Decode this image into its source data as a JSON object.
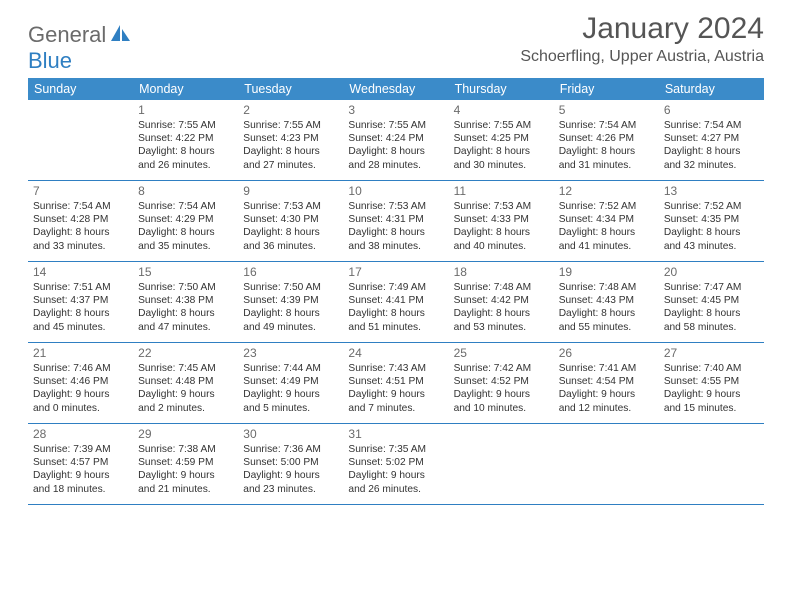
{
  "brand": {
    "text1": "General",
    "text2": "Blue",
    "iconColor": "#2f7fc2"
  },
  "title": "January 2024",
  "location": "Schoerfling, Upper Austria, Austria",
  "colors": {
    "headerBg": "#3b8bc9",
    "headerText": "#ffffff",
    "ruleColor": "#2f7fc2",
    "bodyText": "#333333",
    "mutedText": "#6b6b6b",
    "brandBlue": "#2f7fc2"
  },
  "dayNames": [
    "Sunday",
    "Monday",
    "Tuesday",
    "Wednesday",
    "Thursday",
    "Friday",
    "Saturday"
  ],
  "weeks": [
    [
      null,
      {
        "n": "1",
        "sr": "7:55 AM",
        "ss": "4:22 PM",
        "dl": "8 hours and 26 minutes."
      },
      {
        "n": "2",
        "sr": "7:55 AM",
        "ss": "4:23 PM",
        "dl": "8 hours and 27 minutes."
      },
      {
        "n": "3",
        "sr": "7:55 AM",
        "ss": "4:24 PM",
        "dl": "8 hours and 28 minutes."
      },
      {
        "n": "4",
        "sr": "7:55 AM",
        "ss": "4:25 PM",
        "dl": "8 hours and 30 minutes."
      },
      {
        "n": "5",
        "sr": "7:54 AM",
        "ss": "4:26 PM",
        "dl": "8 hours and 31 minutes."
      },
      {
        "n": "6",
        "sr": "7:54 AM",
        "ss": "4:27 PM",
        "dl": "8 hours and 32 minutes."
      }
    ],
    [
      {
        "n": "7",
        "sr": "7:54 AM",
        "ss": "4:28 PM",
        "dl": "8 hours and 33 minutes."
      },
      {
        "n": "8",
        "sr": "7:54 AM",
        "ss": "4:29 PM",
        "dl": "8 hours and 35 minutes."
      },
      {
        "n": "9",
        "sr": "7:53 AM",
        "ss": "4:30 PM",
        "dl": "8 hours and 36 minutes."
      },
      {
        "n": "10",
        "sr": "7:53 AM",
        "ss": "4:31 PM",
        "dl": "8 hours and 38 minutes."
      },
      {
        "n": "11",
        "sr": "7:53 AM",
        "ss": "4:33 PM",
        "dl": "8 hours and 40 minutes."
      },
      {
        "n": "12",
        "sr": "7:52 AM",
        "ss": "4:34 PM",
        "dl": "8 hours and 41 minutes."
      },
      {
        "n": "13",
        "sr": "7:52 AM",
        "ss": "4:35 PM",
        "dl": "8 hours and 43 minutes."
      }
    ],
    [
      {
        "n": "14",
        "sr": "7:51 AM",
        "ss": "4:37 PM",
        "dl": "8 hours and 45 minutes."
      },
      {
        "n": "15",
        "sr": "7:50 AM",
        "ss": "4:38 PM",
        "dl": "8 hours and 47 minutes."
      },
      {
        "n": "16",
        "sr": "7:50 AM",
        "ss": "4:39 PM",
        "dl": "8 hours and 49 minutes."
      },
      {
        "n": "17",
        "sr": "7:49 AM",
        "ss": "4:41 PM",
        "dl": "8 hours and 51 minutes."
      },
      {
        "n": "18",
        "sr": "7:48 AM",
        "ss": "4:42 PM",
        "dl": "8 hours and 53 minutes."
      },
      {
        "n": "19",
        "sr": "7:48 AM",
        "ss": "4:43 PM",
        "dl": "8 hours and 55 minutes."
      },
      {
        "n": "20",
        "sr": "7:47 AM",
        "ss": "4:45 PM",
        "dl": "8 hours and 58 minutes."
      }
    ],
    [
      {
        "n": "21",
        "sr": "7:46 AM",
        "ss": "4:46 PM",
        "dl": "9 hours and 0 minutes."
      },
      {
        "n": "22",
        "sr": "7:45 AM",
        "ss": "4:48 PM",
        "dl": "9 hours and 2 minutes."
      },
      {
        "n": "23",
        "sr": "7:44 AM",
        "ss": "4:49 PM",
        "dl": "9 hours and 5 minutes."
      },
      {
        "n": "24",
        "sr": "7:43 AM",
        "ss": "4:51 PM",
        "dl": "9 hours and 7 minutes."
      },
      {
        "n": "25",
        "sr": "7:42 AM",
        "ss": "4:52 PM",
        "dl": "9 hours and 10 minutes."
      },
      {
        "n": "26",
        "sr": "7:41 AM",
        "ss": "4:54 PM",
        "dl": "9 hours and 12 minutes."
      },
      {
        "n": "27",
        "sr": "7:40 AM",
        "ss": "4:55 PM",
        "dl": "9 hours and 15 minutes."
      }
    ],
    [
      {
        "n": "28",
        "sr": "7:39 AM",
        "ss": "4:57 PM",
        "dl": "9 hours and 18 minutes."
      },
      {
        "n": "29",
        "sr": "7:38 AM",
        "ss": "4:59 PM",
        "dl": "9 hours and 21 minutes."
      },
      {
        "n": "30",
        "sr": "7:36 AM",
        "ss": "5:00 PM",
        "dl": "9 hours and 23 minutes."
      },
      {
        "n": "31",
        "sr": "7:35 AM",
        "ss": "5:02 PM",
        "dl": "9 hours and 26 minutes."
      },
      null,
      null,
      null
    ]
  ],
  "labels": {
    "sunrise": "Sunrise: ",
    "sunset": "Sunset: ",
    "daylight": "Daylight: "
  }
}
